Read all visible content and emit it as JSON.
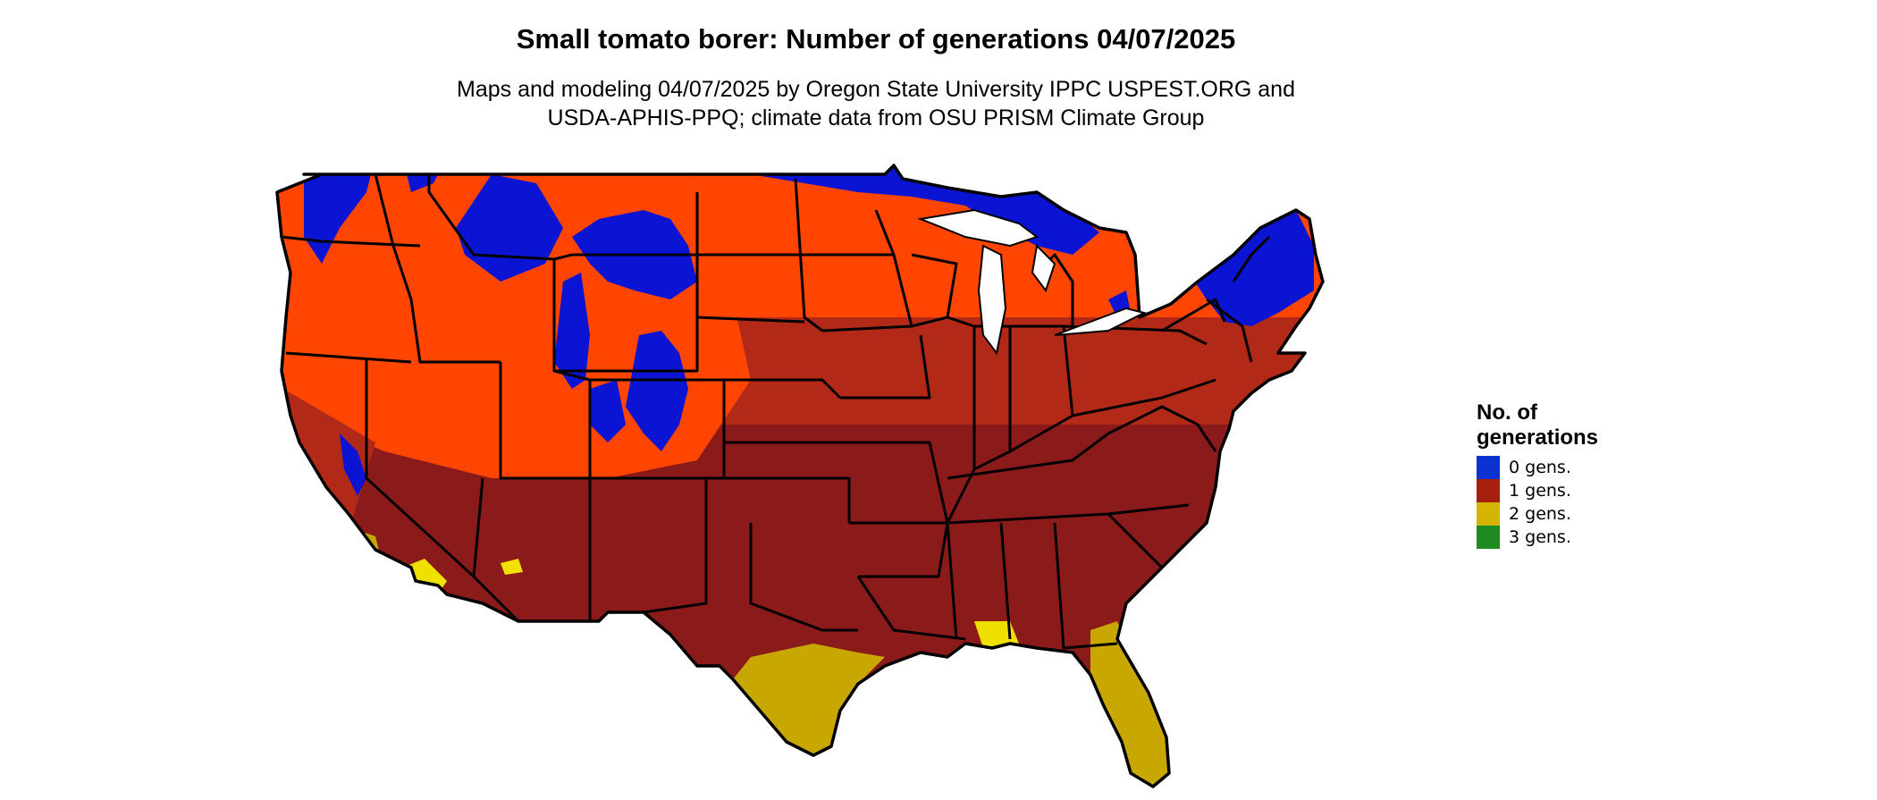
{
  "title": "Small tomato borer: Number of generations 04/07/2025",
  "subtitle": {
    "line1": "Maps and modeling 04/07/2025 by Oregon State University IPPC USPEST.ORG and",
    "line2": "USDA-APHIS-PPQ; climate data from OSU PRISM Climate Group"
  },
  "legend": {
    "title_line1": "No. of",
    "title_line2": "generations",
    "items": [
      {
        "label": "0 gens.",
        "color": "#0a32d2"
      },
      {
        "label": "1 gens.",
        "color": "#a7200f"
      },
      {
        "label": "2 gens.",
        "color": "#d4b400"
      },
      {
        "label": "3 gens.",
        "color": "#1f8c23"
      }
    ]
  },
  "map_colors": {
    "zero_gens": "#0a14d2",
    "one_gen_north": "#ff4500",
    "one_gen_mid": "#b22a17",
    "one_gen_south": "#8b1a1a",
    "two_gens": "#c8a800",
    "two_gens_bright": "#f0e000",
    "three_gens": "#1f8c23",
    "borders": "#000000"
  }
}
